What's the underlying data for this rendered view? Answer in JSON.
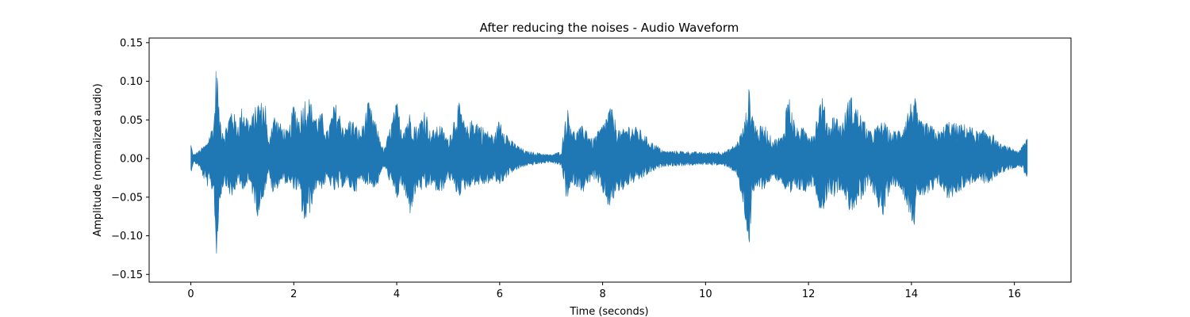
{
  "chart_data": {
    "type": "area",
    "title": "After reducing the noises - Audio Waveform",
    "xlabel": "Time (seconds)",
    "ylabel": "Amplitude (normalized audio)",
    "xlim": [
      -0.81,
      17.1
    ],
    "ylim": [
      -0.16,
      0.156
    ],
    "x_ticks": [
      0,
      2,
      4,
      6,
      8,
      10,
      12,
      14,
      16
    ],
    "x_tick_labels": [
      "0",
      "2",
      "4",
      "6",
      "8",
      "10",
      "12",
      "14",
      "16"
    ],
    "y_ticks": [
      0.15,
      0.1,
      0.05,
      0.0,
      -0.05,
      -0.1,
      -0.15
    ],
    "y_tick_labels": [
      "0.15",
      "0.10",
      "0.05",
      "0.00",
      "−0.05",
      "−0.10",
      "−0.15"
    ],
    "grid": false,
    "legend": "none",
    "series": [
      {
        "color": "#1f77b4",
        "x": [
          0.0,
          0.05,
          0.15,
          0.3,
          0.45,
          0.5,
          0.55,
          0.65,
          0.8,
          0.9,
          1.0,
          1.15,
          1.3,
          1.45,
          1.5,
          1.6,
          1.75,
          1.9,
          2.0,
          2.1,
          2.2,
          2.3,
          2.45,
          2.55,
          2.65,
          2.8,
          3.0,
          3.1,
          3.2,
          3.3,
          3.45,
          3.6,
          3.75,
          4.0,
          4.1,
          4.25,
          4.4,
          4.55,
          4.65,
          4.85,
          5.0,
          5.2,
          5.35,
          5.5,
          5.7,
          5.9,
          6.0,
          6.2,
          6.5,
          7.0,
          7.2,
          7.3,
          7.45,
          7.65,
          7.8,
          8.0,
          8.15,
          8.25,
          8.35,
          8.5,
          8.7,
          8.9,
          9.2,
          9.5,
          10.0,
          10.4,
          10.6,
          10.75,
          10.85,
          10.9,
          11.0,
          11.15,
          11.3,
          11.5,
          11.6,
          11.75,
          11.9,
          12.1,
          12.25,
          12.4,
          12.5,
          12.65,
          12.8,
          13.0,
          13.2,
          13.45,
          13.6,
          13.8,
          14.05,
          14.15,
          14.35,
          14.55,
          14.7,
          14.9,
          15.1,
          15.3,
          15.5,
          15.7,
          15.9,
          16.1,
          16.25
        ],
        "upper": [
          0.02,
          0.005,
          0.01,
          0.02,
          0.05,
          0.14,
          0.06,
          0.035,
          0.07,
          0.045,
          0.07,
          0.05,
          0.075,
          0.075,
          0.02,
          0.06,
          0.045,
          0.035,
          0.075,
          0.055,
          0.08,
          0.08,
          0.055,
          0.06,
          0.035,
          0.075,
          0.04,
          0.055,
          0.045,
          0.035,
          0.075,
          0.045,
          0.01,
          0.075,
          0.04,
          0.06,
          0.04,
          0.07,
          0.035,
          0.045,
          0.025,
          0.075,
          0.04,
          0.055,
          0.04,
          0.03,
          0.055,
          0.025,
          0.01,
          0.005,
          0.01,
          0.07,
          0.035,
          0.045,
          0.025,
          0.045,
          0.07,
          0.05,
          0.035,
          0.045,
          0.04,
          0.025,
          0.01,
          0.01,
          0.008,
          0.01,
          0.02,
          0.045,
          0.095,
          0.065,
          0.04,
          0.045,
          0.025,
          0.03,
          0.09,
          0.04,
          0.04,
          0.035,
          0.085,
          0.045,
          0.06,
          0.045,
          0.085,
          0.06,
          0.035,
          0.05,
          0.035,
          0.04,
          0.085,
          0.05,
          0.045,
          0.035,
          0.05,
          0.045,
          0.045,
          0.035,
          0.04,
          0.02,
          0.015,
          0.01,
          0.03
        ],
        "lower": [
          -0.02,
          -0.005,
          -0.01,
          -0.035,
          -0.045,
          -0.147,
          -0.06,
          -0.03,
          -0.055,
          -0.035,
          -0.04,
          -0.035,
          -0.075,
          -0.04,
          -0.02,
          -0.05,
          -0.03,
          -0.035,
          -0.04,
          -0.045,
          -0.09,
          -0.075,
          -0.035,
          -0.04,
          -0.03,
          -0.045,
          -0.035,
          -0.04,
          -0.045,
          -0.03,
          -0.035,
          -0.04,
          -0.01,
          -0.055,
          -0.035,
          -0.075,
          -0.04,
          -0.045,
          -0.035,
          -0.05,
          -0.025,
          -0.05,
          -0.04,
          -0.035,
          -0.035,
          -0.03,
          -0.035,
          -0.02,
          -0.01,
          -0.005,
          -0.01,
          -0.055,
          -0.035,
          -0.045,
          -0.025,
          -0.045,
          -0.07,
          -0.045,
          -0.045,
          -0.035,
          -0.03,
          -0.02,
          -0.01,
          -0.01,
          -0.008,
          -0.01,
          -0.02,
          -0.07,
          -0.12,
          -0.06,
          -0.04,
          -0.04,
          -0.025,
          -0.035,
          -0.06,
          -0.04,
          -0.045,
          -0.035,
          -0.075,
          -0.045,
          -0.05,
          -0.04,
          -0.07,
          -0.06,
          -0.035,
          -0.08,
          -0.035,
          -0.04,
          -0.09,
          -0.05,
          -0.05,
          -0.035,
          -0.055,
          -0.045,
          -0.035,
          -0.03,
          -0.035,
          -0.02,
          -0.015,
          -0.01,
          -0.025
        ]
      }
    ]
  }
}
